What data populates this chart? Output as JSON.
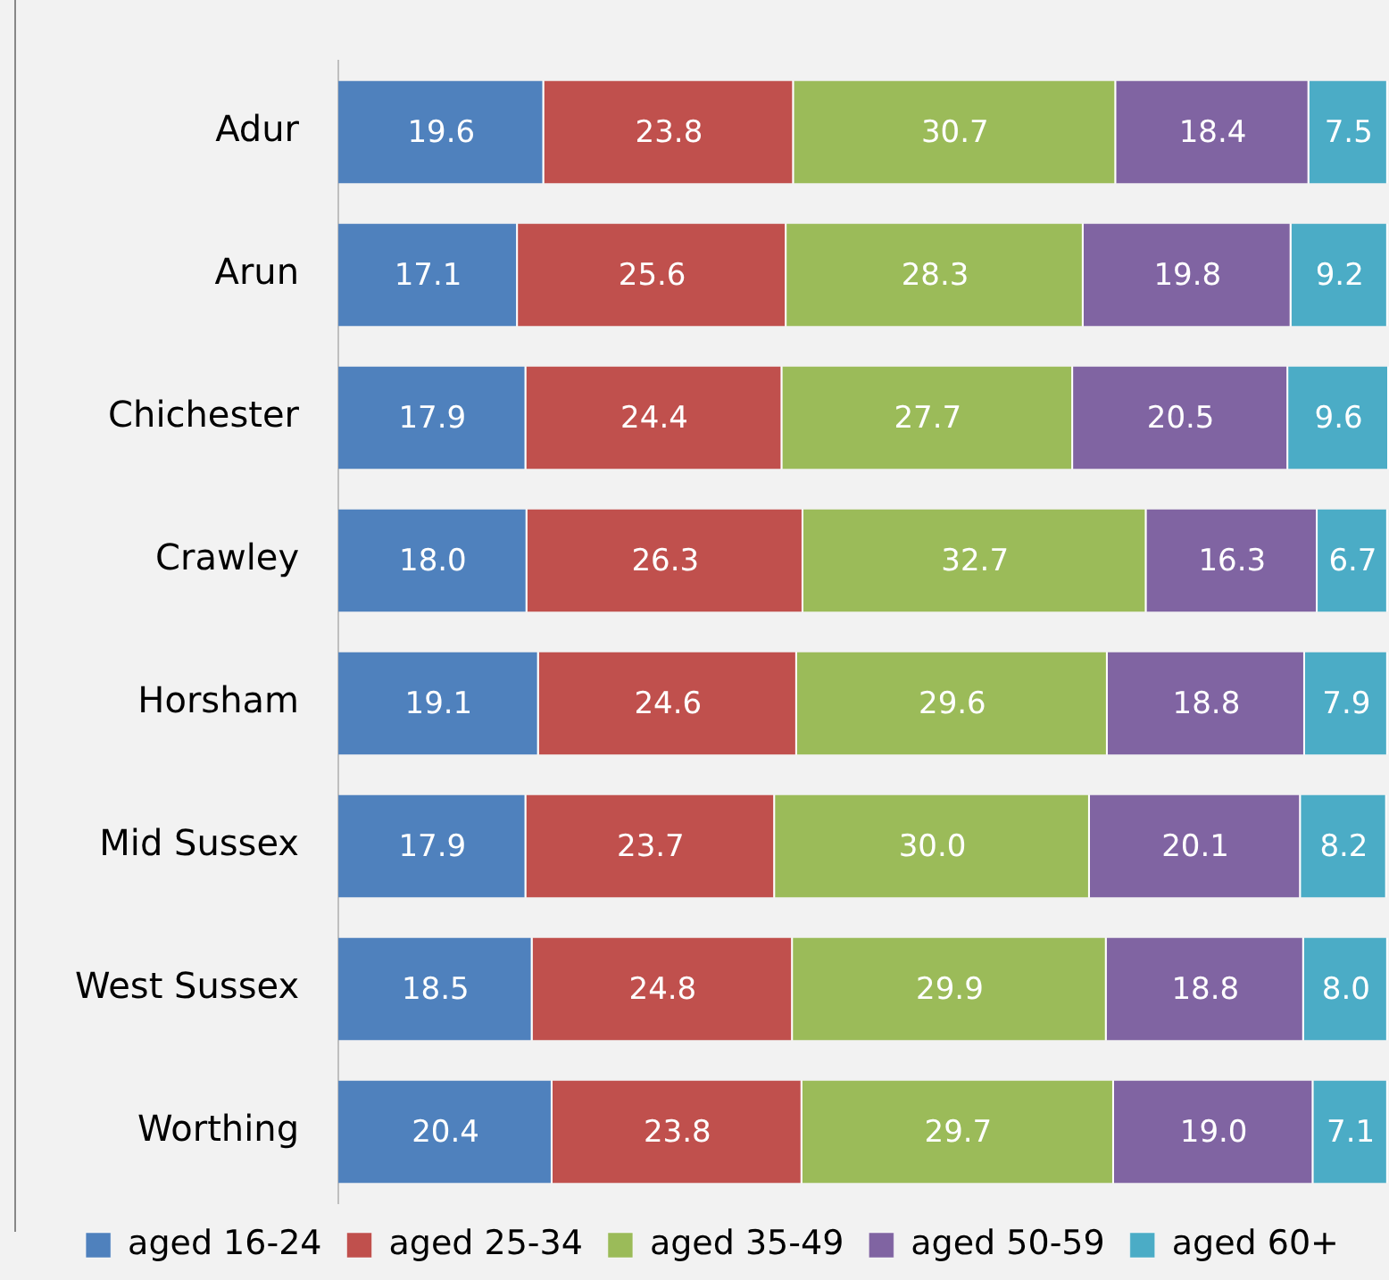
{
  "chart_data": {
    "type": "bar",
    "orientation": "horizontal",
    "stacked": true,
    "legend": "bottom",
    "grid": false,
    "categories": [
      "Adur",
      "Arun",
      "Chichester",
      "Crawley",
      "Horsham",
      "Mid Sussex",
      "West Sussex",
      "Worthing"
    ],
    "series": [
      {
        "name": "aged 16-24",
        "color": "#4f81bd",
        "values": [
          19.6,
          17.1,
          17.9,
          18.0,
          19.1,
          17.9,
          18.5,
          20.4
        ],
        "value_labels": [
          "19.6",
          "17.1",
          "17.9",
          "18.0",
          "19.1",
          "17.9",
          "18.5",
          "20.4"
        ]
      },
      {
        "name": "aged 25-34",
        "color": "#c0504d",
        "values": [
          23.8,
          25.6,
          24.4,
          26.3,
          24.6,
          23.7,
          24.8,
          23.8
        ],
        "value_labels": [
          "23.8",
          "25.6",
          "24.4",
          "26.3",
          "24.6",
          "23.7",
          "24.8",
          "23.8"
        ]
      },
      {
        "name": "aged 35-49",
        "color": "#9bbb59",
        "values": [
          30.7,
          28.3,
          27.7,
          32.7,
          29.6,
          30.0,
          29.9,
          29.7
        ],
        "value_labels": [
          "30.7",
          "28.3",
          "27.7",
          "32.7",
          "29.6",
          "30.0",
          "29.9",
          "29.7"
        ]
      },
      {
        "name": "aged 50-59",
        "color": "#8064a2",
        "values": [
          18.4,
          19.8,
          20.5,
          16.3,
          18.8,
          20.1,
          18.8,
          19.0
        ],
        "value_labels": [
          "18.4",
          "19.8",
          "20.5",
          "16.3",
          "18.8",
          "20.1",
          "18.8",
          "19.0"
        ]
      },
      {
        "name": "aged 60+",
        "color": "#4bacc6",
        "values": [
          7.5,
          9.2,
          9.6,
          6.7,
          7.9,
          8.2,
          8.0,
          7.1
        ],
        "value_labels": [
          "7.5",
          "9.2",
          "9.6",
          "6.7",
          "7.9",
          "8.2",
          "8.0",
          "7.1"
        ]
      }
    ]
  }
}
